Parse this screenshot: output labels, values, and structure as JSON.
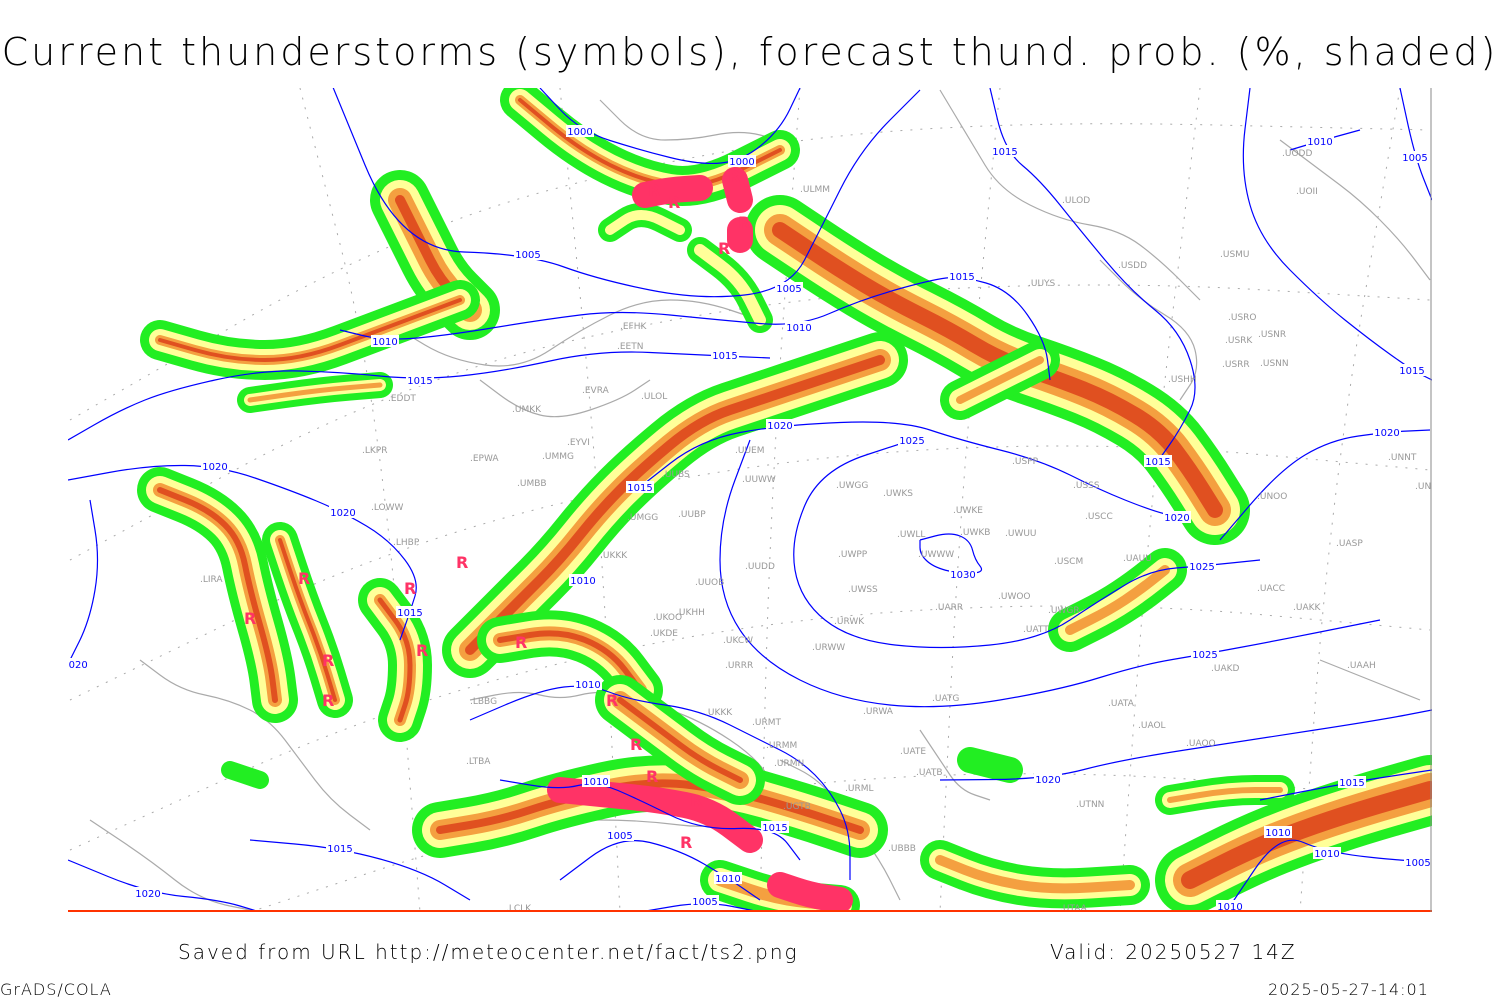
{
  "title": "Current thunderstorms (symbols), forecast thund. prob. (%, shaded)",
  "footer": {
    "source": "Saved from URL http://meteocenter.net/fact/ts2.png",
    "valid": "Valid: 20250527 14Z",
    "software": "GrADS/COLA",
    "timestamp": "2025-05-27-14:01"
  },
  "colors": {
    "prob_low": "#22ee22",
    "prob_mid": "#ffff99",
    "prob_high": "#f4a040",
    "prob_very_high": "#e05020",
    "current_thunderstorm": "#ff3366",
    "isobar": "#0000ff",
    "station": "#999999",
    "coastline": "#aaaaaa"
  },
  "current_thunderstorm_symbol": "R",
  "stations": [
    "ULMM",
    "ULOD",
    "USDD",
    "USMU",
    "UUYS",
    "USRO",
    "USRK",
    "USNR",
    "USRR",
    "USNN",
    "USHH",
    "EFHK",
    "EETN",
    "EVRA",
    "ULOL",
    "UMKK",
    "EYVI",
    "UMMG",
    "EPWA",
    "LKPR",
    "UMBB",
    "UUBS",
    "UUEM",
    "UUWW",
    "UWGG",
    "UWKS",
    "UWKE",
    "UWKB",
    "UWUU",
    "USPP",
    "USSS",
    "USCC",
    "UAUU",
    "USCM",
    "UWLL",
    "UWPP",
    "UWWW",
    "UUDD",
    "UUOB",
    "UKKK",
    "UMGG",
    "UUBP",
    "LHBP",
    "UWSS",
    "UARR",
    "UWOO",
    "UWGR",
    "UATT",
    "URWK",
    "UKOO",
    "UKHH",
    "UKDE",
    "UKCW",
    "URWW",
    "URRR",
    "UATG",
    "UATA",
    "UAOL",
    "UAOO",
    "URWA",
    "URMT",
    "URMM",
    "URMN",
    "UATE",
    "UATB",
    "URML",
    "UGTB",
    "UBBB",
    "UTNN",
    "LBBG",
    "LTBA",
    "UKKK",
    "UAKD",
    "UAAH",
    "UACC",
    "UAKK",
    "UASP",
    "UNOO",
    "UNNT",
    "UNBB",
    "UODD",
    "UOII",
    "EDDT",
    "LIRA",
    "LOWW",
    "UTAA",
    "LCLK"
  ],
  "isobar_labels": [
    "1000",
    "1000",
    "1005",
    "1005",
    "1010",
    "1010",
    "1015",
    "1015",
    "1015",
    "1015",
    "1010",
    "1005",
    "1015",
    "1020",
    "1025",
    "1020",
    "1015",
    "1015",
    "1020",
    "1025",
    "1030",
    "1025",
    "1020",
    "1015",
    "1010",
    "1010",
    "1005",
    "1010",
    "1020",
    "1020",
    "1015",
    "1010",
    "1010",
    "1010",
    "1005",
    "1015",
    "1010",
    "1005",
    "1015",
    "1020",
    "1020"
  ]
}
